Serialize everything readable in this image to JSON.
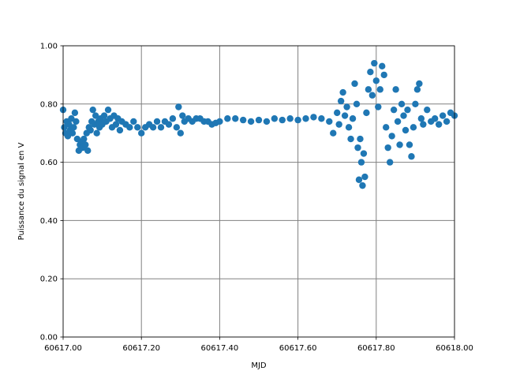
{
  "chart_data": {
    "type": "scatter",
    "xlabel": "MJD",
    "ylabel": "Puissance du signal en V",
    "color": "#1f77b4",
    "grid": true,
    "xlim": [
      60617.0,
      60618.0
    ],
    "xticks": [
      {
        "value": 60617.0,
        "label": "60617.00"
      },
      {
        "value": 60617.2,
        "label": "60617.20"
      },
      {
        "value": 60617.4,
        "label": "60617.40"
      },
      {
        "value": 60617.6,
        "label": "60617.60"
      },
      {
        "value": 60617.8,
        "label": "60617.80"
      },
      {
        "value": 60618.0,
        "label": "60618.00"
      }
    ],
    "ylim": [
      0,
      1
    ],
    "yticks": [
      {
        "value": 0,
        "label": "0.00"
      },
      {
        "value": 0.2,
        "label": "0.20"
      },
      {
        "value": 0.4,
        "label": "0.40"
      },
      {
        "value": 0.6,
        "label": "0.60"
      },
      {
        "value": 0.8,
        "label": "0.80"
      },
      {
        "value": 1,
        "label": "1.00"
      }
    ],
    "x": [
      60617.0,
      60617.003,
      60617.006,
      60617.009,
      60617.012,
      60617.015,
      60617.018,
      60617.021,
      60617.024,
      60617.027,
      60617.03,
      60617.033,
      60617.036,
      60617.04,
      60617.043,
      60617.046,
      60617.05,
      60617.053,
      60617.057,
      60617.06,
      60617.063,
      60617.066,
      60617.07,
      60617.073,
      60617.076,
      60617.08,
      60617.083,
      60617.086,
      60617.09,
      60617.093,
      60617.096,
      60617.1,
      60617.105,
      60617.11,
      60617.115,
      60617.12,
      60617.125,
      60617.13,
      60617.135,
      60617.14,
      60617.145,
      60617.15,
      60617.16,
      60617.17,
      60617.18,
      60617.19,
      60617.2,
      60617.21,
      60617.22,
      60617.23,
      60617.24,
      60617.25,
      60617.26,
      60617.27,
      60617.28,
      60617.29,
      60617.295,
      60617.3,
      60617.305,
      60617.31,
      60617.32,
      60617.33,
      60617.34,
      60617.35,
      60617.36,
      60617.37,
      60617.38,
      60617.39,
      60617.4,
      60617.42,
      60617.44,
      60617.46,
      60617.48,
      60617.5,
      60617.52,
      60617.54,
      60617.56,
      60617.58,
      60617.6,
      60617.62,
      60617.64,
      60617.66,
      60617.68,
      60617.69,
      60617.7,
      60617.705,
      60617.71,
      60617.715,
      60617.72,
      60617.725,
      60617.73,
      60617.735,
      60617.74,
      60617.745,
      60617.75,
      60617.753,
      60617.756,
      60617.759,
      60617.762,
      60617.765,
      60617.768,
      60617.771,
      60617.775,
      60617.78,
      60617.785,
      60617.79,
      60617.795,
      60617.8,
      60617.805,
      60617.81,
      60617.815,
      60617.82,
      60617.825,
      60617.83,
      60617.835,
      60617.84,
      60617.845,
      60617.85,
      60617.855,
      60617.86,
      60617.865,
      60617.87,
      60617.875,
      60617.88,
      60617.885,
      60617.89,
      60617.895,
      60617.9,
      60617.905,
      60617.91,
      60617.915,
      60617.92,
      60617.93,
      60617.94,
      60617.95,
      60617.96,
      60617.97,
      60617.98,
      60617.99,
      60618.0
    ],
    "values": [
      0.78,
      0.72,
      0.7,
      0.74,
      0.69,
      0.73,
      0.71,
      0.75,
      0.7,
      0.72,
      0.77,
      0.74,
      0.68,
      0.64,
      0.66,
      0.67,
      0.65,
      0.68,
      0.66,
      0.7,
      0.64,
      0.72,
      0.71,
      0.74,
      0.78,
      0.73,
      0.76,
      0.7,
      0.74,
      0.72,
      0.75,
      0.73,
      0.76,
      0.74,
      0.78,
      0.75,
      0.72,
      0.76,
      0.73,
      0.75,
      0.71,
      0.74,
      0.73,
      0.72,
      0.74,
      0.72,
      0.7,
      0.72,
      0.73,
      0.72,
      0.74,
      0.72,
      0.74,
      0.73,
      0.75,
      0.72,
      0.79,
      0.7,
      0.76,
      0.74,
      0.75,
      0.74,
      0.75,
      0.75,
      0.74,
      0.74,
      0.73,
      0.735,
      0.74,
      0.75,
      0.75,
      0.745,
      0.74,
      0.745,
      0.74,
      0.75,
      0.745,
      0.75,
      0.745,
      0.75,
      0.755,
      0.75,
      0.74,
      0.7,
      0.77,
      0.73,
      0.81,
      0.84,
      0.76,
      0.79,
      0.72,
      0.68,
      0.75,
      0.87,
      0.8,
      0.65,
      0.54,
      0.68,
      0.6,
      0.52,
      0.63,
      0.55,
      0.77,
      0.85,
      0.91,
      0.83,
      0.94,
      0.88,
      0.79,
      0.85,
      0.93,
      0.9,
      0.72,
      0.65,
      0.6,
      0.69,
      0.78,
      0.85,
      0.74,
      0.66,
      0.8,
      0.76,
      0.71,
      0.78,
      0.66,
      0.62,
      0.72,
      0.8,
      0.85,
      0.87,
      0.75,
      0.73,
      0.78,
      0.74,
      0.75,
      0.73,
      0.76,
      0.74,
      0.77,
      0.76
    ]
  }
}
